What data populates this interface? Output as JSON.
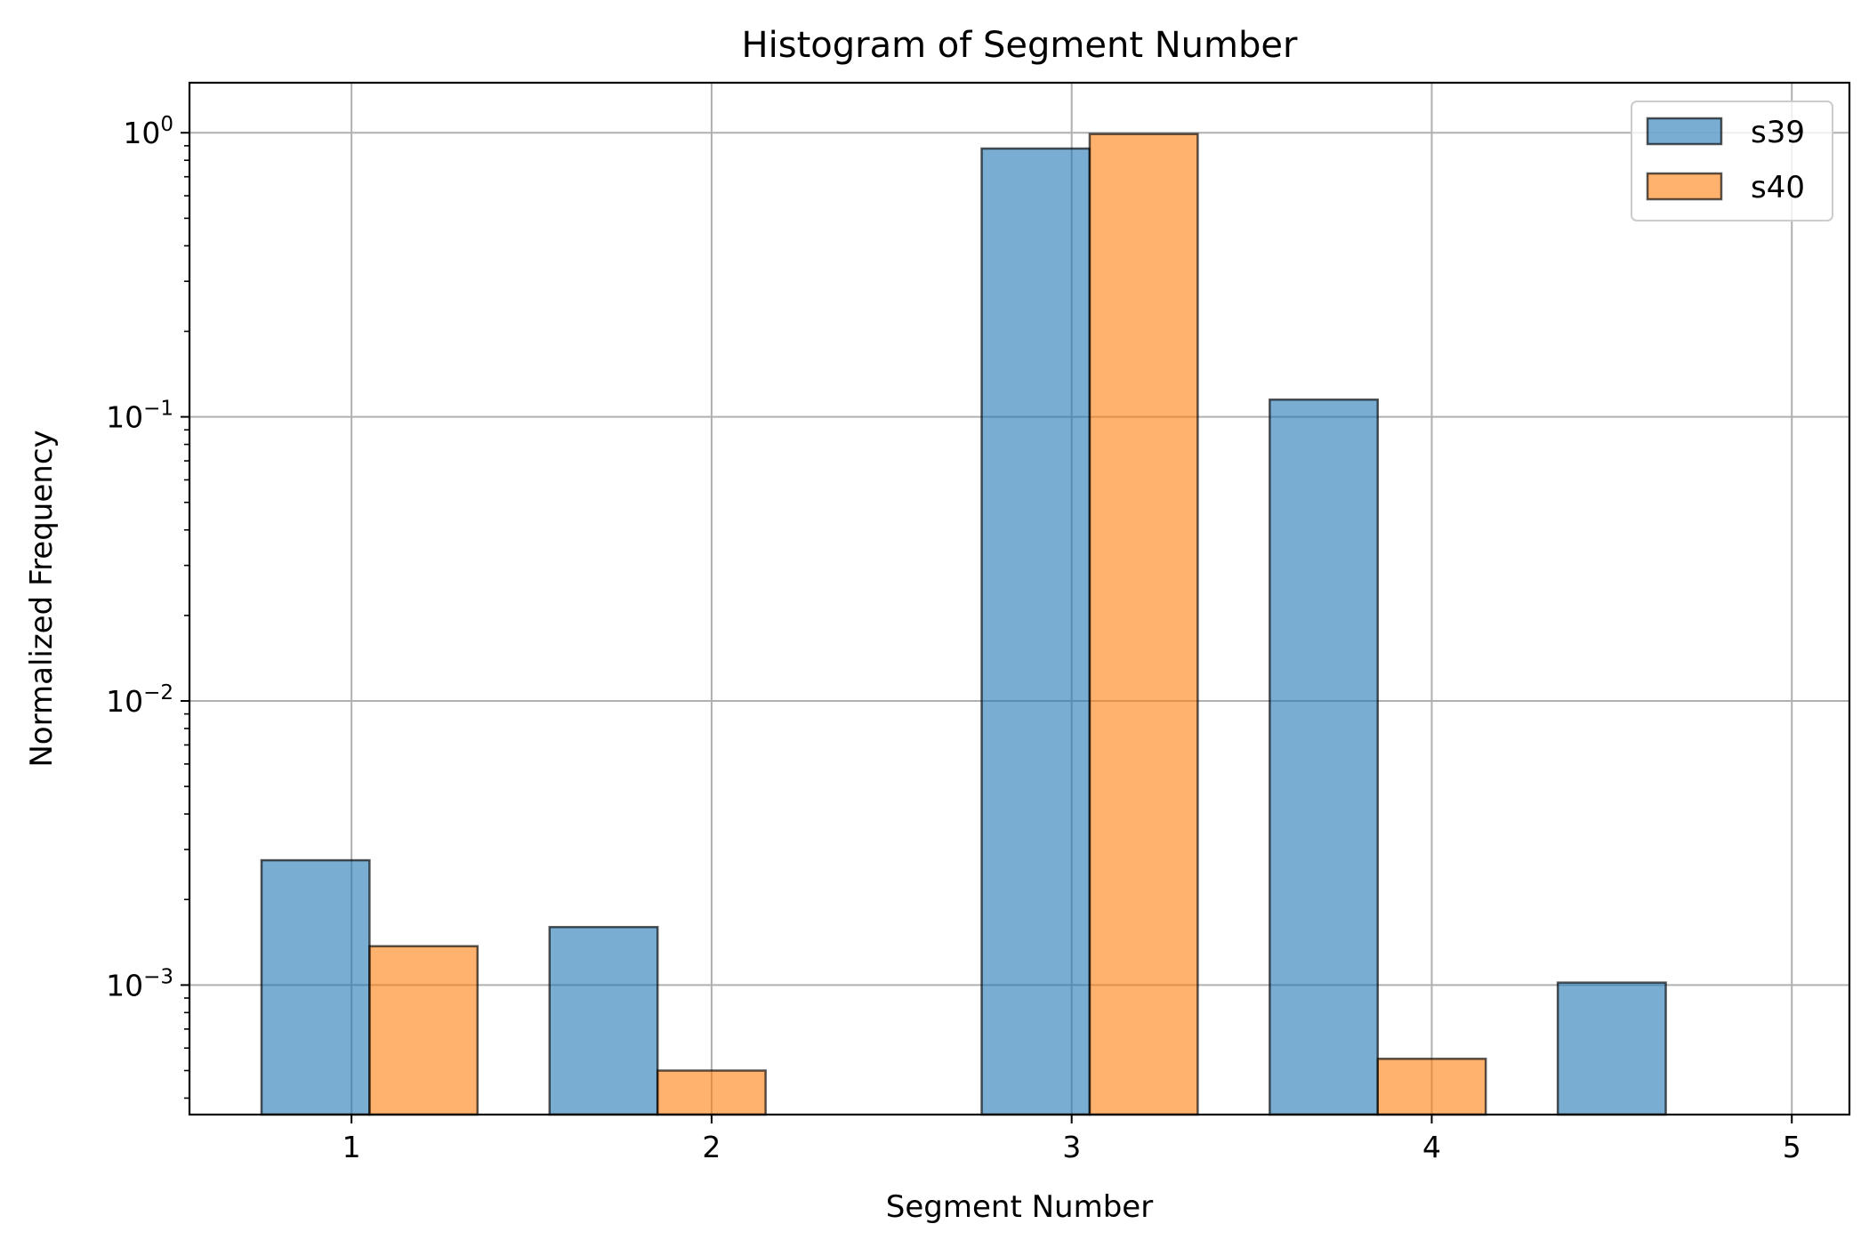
{
  "chart_data": {
    "type": "bar",
    "title": "Histogram of Segment Number",
    "xlabel": "Segment Number",
    "ylabel": "Normalized Frequency",
    "yscale": "log",
    "ylim": [
      0.00035,
      1.5
    ],
    "xlim": [
      0.55,
      5.16
    ],
    "x_ticks": [
      1,
      2,
      3,
      4,
      5
    ],
    "y_ticks": [
      {
        "value": 1,
        "base": "10",
        "exp": "0"
      },
      {
        "value": 0.1,
        "base": "10",
        "exp": "−1"
      },
      {
        "value": 0.01,
        "base": "10",
        "exp": "−2"
      },
      {
        "value": 0.001,
        "base": "10",
        "exp": "−3"
      }
    ],
    "grid": true,
    "legend_position": "top-right",
    "series": [
      {
        "name": "s39",
        "color": "#1f77b4",
        "bins": [
          {
            "left": 0.75,
            "right": 1.05,
            "value": 0.00275
          },
          {
            "left": 1.55,
            "right": 1.85,
            "value": 0.0016
          },
          {
            "left": 2.75,
            "right": 3.05,
            "value": 0.88
          },
          {
            "left": 3.55,
            "right": 3.85,
            "value": 0.115
          },
          {
            "left": 4.35,
            "right": 4.65,
            "value": 0.00102
          }
        ]
      },
      {
        "name": "s40",
        "color": "#ff7f0e",
        "bins": [
          {
            "left": 1.05,
            "right": 1.35,
            "value": 0.00137
          },
          {
            "left": 1.85,
            "right": 2.15,
            "value": 0.0005
          },
          {
            "left": 3.05,
            "right": 3.35,
            "value": 0.99
          },
          {
            "left": 3.85,
            "right": 4.15,
            "value": 0.00055
          }
        ]
      }
    ]
  }
}
